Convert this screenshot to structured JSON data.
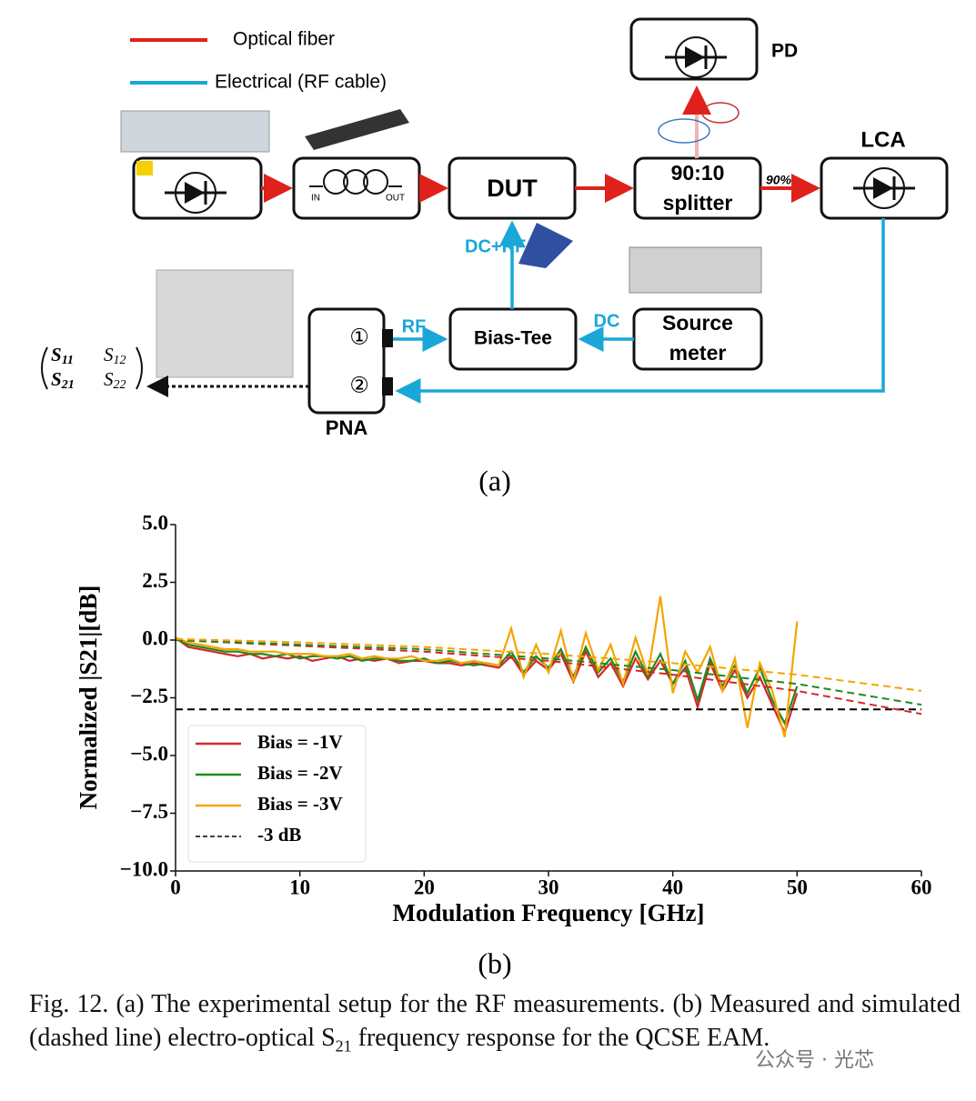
{
  "diagram": {
    "legend": [
      "Optical fiber",
      "Electrical (RF cable)"
    ],
    "coil_ports": [
      "IN",
      "OUT"
    ],
    "dut": "DUT",
    "splitter": [
      "90:10",
      "splitter"
    ],
    "ratio": "90%",
    "pd": "PD",
    "lca": "LCA",
    "dc_rf": "DC+RF",
    "bias_tee": "Bias-Tee",
    "dc": "DC",
    "source_meter": [
      "Source",
      "meter"
    ],
    "rf": "RF",
    "pna": "PNA",
    "pna_ports": [
      "①",
      "②"
    ],
    "matrix": [
      [
        "S",
        "11"
      ],
      [
        "S",
        "12"
      ],
      [
        "S",
        "21"
      ],
      [
        "S",
        "22"
      ]
    ],
    "label": "(a)"
  },
  "chart_data": {
    "type": "line",
    "xlabel": "Modulation Frequency [GHz]",
    "ylabel": "Normalized |S21|[dB]",
    "xlim": [
      0,
      60
    ],
    "ylim": [
      -10,
      5
    ],
    "xticks": [
      0,
      10,
      20,
      30,
      40,
      50,
      60
    ],
    "yticks": [
      {
        "value": 5,
        "label": "5.0"
      },
      {
        "value": 2.5,
        "label": "2.5"
      },
      {
        "value": 0,
        "label": "0.0"
      },
      {
        "value": -2.5,
        "label": "−2.5"
      },
      {
        "value": -5,
        "label": "−5.0"
      },
      {
        "value": -7.5,
        "label": "−7.5"
      },
      {
        "value": -10,
        "label": "−10.0"
      }
    ],
    "legend_position": "lower left",
    "series": [
      {
        "name": "Bias = -1V",
        "color": "#d62728",
        "dashed": false,
        "x": [
          0,
          1,
          2,
          3,
          4,
          5,
          6,
          7,
          8,
          9,
          10,
          11,
          12,
          13,
          14,
          15,
          16,
          17,
          18,
          19,
          20,
          21,
          22,
          23,
          24,
          25,
          26,
          27,
          28,
          29,
          30,
          31,
          32,
          33,
          34,
          35,
          36,
          37,
          38,
          39,
          40,
          41,
          42,
          43,
          44,
          45,
          46,
          47,
          48,
          49,
          50
        ],
        "values": [
          0.1,
          -0.3,
          -0.4,
          -0.5,
          -0.6,
          -0.7,
          -0.6,
          -0.8,
          -0.7,
          -0.8,
          -0.7,
          -0.9,
          -0.8,
          -0.7,
          -0.9,
          -0.8,
          -0.9,
          -0.8,
          -1.0,
          -0.9,
          -0.9,
          -1.0,
          -1.0,
          -1.1,
          -1.0,
          -1.1,
          -1.2,
          -0.7,
          -1.5,
          -0.9,
          -1.3,
          -0.6,
          -1.8,
          -0.5,
          -1.6,
          -1.0,
          -2.0,
          -0.8,
          -1.7,
          -0.9,
          -1.9,
          -1.2,
          -2.9,
          -1.0,
          -2.2,
          -1.3,
          -2.5,
          -1.6,
          -2.8,
          -4.0,
          -2.3
        ]
      },
      {
        "name": "Bias = -2V",
        "color": "#1f8a1f",
        "dashed": false,
        "x": [
          0,
          1,
          2,
          3,
          4,
          5,
          6,
          7,
          8,
          9,
          10,
          11,
          12,
          13,
          14,
          15,
          16,
          17,
          18,
          19,
          20,
          21,
          22,
          23,
          24,
          25,
          26,
          27,
          28,
          29,
          30,
          31,
          32,
          33,
          34,
          35,
          36,
          37,
          38,
          39,
          40,
          41,
          42,
          43,
          44,
          45,
          46,
          47,
          48,
          49,
          50
        ],
        "values": [
          0.1,
          -0.2,
          -0.3,
          -0.4,
          -0.5,
          -0.5,
          -0.6,
          -0.6,
          -0.7,
          -0.6,
          -0.8,
          -0.7,
          -0.7,
          -0.8,
          -0.7,
          -0.9,
          -0.8,
          -0.8,
          -0.9,
          -0.9,
          -0.8,
          -1.0,
          -0.9,
          -1.0,
          -1.1,
          -1.0,
          -1.1,
          -0.5,
          -1.4,
          -0.7,
          -1.2,
          -0.4,
          -1.6,
          -0.3,
          -1.4,
          -0.8,
          -1.8,
          -0.5,
          -1.6,
          -0.6,
          -1.9,
          -0.9,
          -2.6,
          -0.8,
          -2.0,
          -1.1,
          -2.3,
          -1.2,
          -2.6,
          -3.6,
          -2.0
        ]
      },
      {
        "name": "Bias = -3V",
        "color": "#f5a400",
        "dashed": false,
        "x": [
          0,
          1,
          2,
          3,
          4,
          5,
          6,
          7,
          8,
          9,
          10,
          11,
          12,
          13,
          14,
          15,
          16,
          17,
          18,
          19,
          20,
          21,
          22,
          23,
          24,
          25,
          26,
          27,
          28,
          29,
          30,
          31,
          32,
          33,
          34,
          35,
          36,
          37,
          38,
          39,
          40,
          41,
          42,
          43,
          44,
          45,
          46,
          47,
          48,
          49,
          50
        ],
        "values": [
          0.1,
          -0.1,
          -0.2,
          -0.3,
          -0.4,
          -0.4,
          -0.5,
          -0.5,
          -0.5,
          -0.6,
          -0.6,
          -0.6,
          -0.7,
          -0.7,
          -0.6,
          -0.8,
          -0.7,
          -0.8,
          -0.8,
          -0.7,
          -0.9,
          -0.9,
          -0.8,
          -1.0,
          -0.9,
          -1.0,
          -1.1,
          0.5,
          -1.6,
          -0.2,
          -1.4,
          0.4,
          -1.8,
          0.3,
          -1.3,
          -0.2,
          -1.9,
          0.1,
          -1.5,
          1.9,
          -2.3,
          -0.5,
          -1.4,
          -0.3,
          -2.2,
          -0.8,
          -3.8,
          -1.0,
          -2.2,
          -4.2,
          0.8
        ]
      },
      {
        "name": "-3 dB",
        "color": "#000000",
        "dashed": true,
        "x": [
          0,
          60
        ],
        "values": [
          -3,
          -3
        ]
      },
      {
        "color": "#d62728",
        "dashed": true,
        "x": [
          0,
          10,
          20,
          30,
          40,
          50,
          60
        ],
        "values": [
          0,
          -0.25,
          -0.5,
          -0.9,
          -1.5,
          -2.2,
          -3.2
        ]
      },
      {
        "color": "#1f8a1f",
        "dashed": true,
        "x": [
          0,
          10,
          20,
          30,
          40,
          50,
          60
        ],
        "values": [
          0,
          -0.2,
          -0.4,
          -0.8,
          -1.3,
          -1.9,
          -2.8
        ]
      },
      {
        "color": "#f5a400",
        "dashed": true,
        "x": [
          0,
          10,
          20,
          30,
          40,
          50,
          60
        ],
        "values": [
          0.05,
          -0.1,
          -0.3,
          -0.6,
          -1.0,
          -1.5,
          -2.2
        ]
      }
    ],
    "panel_label": "(b)"
  },
  "caption": {
    "before": "Fig. 12.  (a) The experimental setup for the RF measurements. (b) Measured and simulated (dashed line) electro-optical S",
    "subscript": "21",
    "after": " frequency response for the QCSE EAM."
  },
  "watermark": "公众号 · 光芯"
}
